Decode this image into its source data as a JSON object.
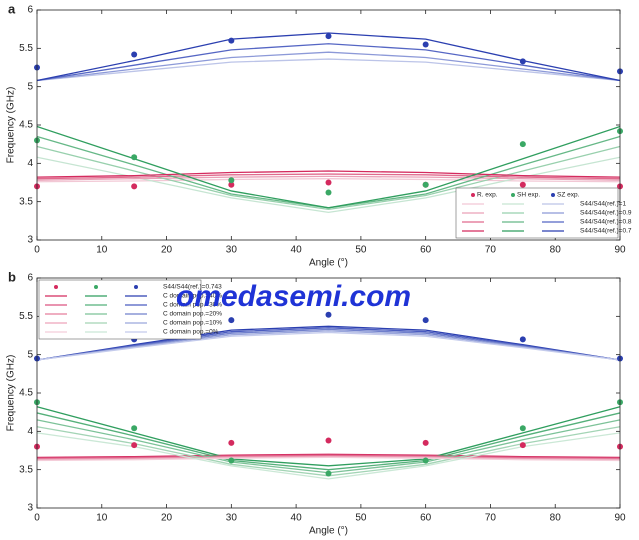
{
  "watermark": "omedasemi.com",
  "chart_data": [
    {
      "type": "line",
      "panel_label": "a",
      "xlabel": "Angle (°)",
      "ylabel": "Frequency (GHz)",
      "x": [
        0,
        15,
        30,
        45,
        60,
        75,
        90
      ],
      "xlim": [
        0,
        90
      ],
      "xticks": [
        0,
        10,
        20,
        30,
        40,
        50,
        60,
        70,
        80,
        90
      ],
      "ylim": [
        3,
        6
      ],
      "yticks": [
        3,
        3.5,
        4,
        4.5,
        5,
        5.5,
        6
      ],
      "legend": "lower right",
      "scatter": [
        {
          "name": "R. exp.",
          "color": "#d42a5e",
          "values": [
            3.7,
            3.7,
            3.72,
            3.75,
            3.72,
            3.72,
            3.7
          ]
        },
        {
          "name": "SH exp.",
          "color": "#3aa865",
          "values": [
            4.3,
            4.08,
            3.78,
            3.62,
            3.72,
            4.25,
            4.42
          ]
        },
        {
          "name": "SZ exp.",
          "color": "#2b3fb0",
          "values": [
            5.25,
            5.42,
            5.6,
            5.66,
            5.55,
            5.33,
            5.2
          ]
        }
      ],
      "lines": [
        {
          "name": "S44/S44(ref.)=1",
          "branches": [
            {
              "color": "#f2c8d5",
              "values": [
                3.76,
                3.77,
                3.79,
                3.8,
                3.79,
                3.77,
                3.76
              ]
            },
            {
              "color": "#c6e5d2",
              "values": [
                4.08,
                3.82,
                3.55,
                3.36,
                3.55,
                3.82,
                4.08
              ]
            },
            {
              "color": "#bcc4e8",
              "values": [
                5.08,
                5.2,
                5.32,
                5.36,
                5.32,
                5.2,
                5.08
              ]
            }
          ]
        },
        {
          "name": "S44/S44(ref.)=0.9",
          "branches": [
            {
              "color": "#eaa0b7",
              "values": [
                3.78,
                3.8,
                3.82,
                3.83,
                3.82,
                3.8,
                3.78
              ]
            },
            {
              "color": "#98d0ad",
              "values": [
                4.22,
                3.9,
                3.58,
                3.4,
                3.58,
                3.9,
                4.22
              ]
            },
            {
              "color": "#8c99d8",
              "values": [
                5.08,
                5.23,
                5.38,
                5.45,
                5.38,
                5.23,
                5.08
              ]
            }
          ]
        },
        {
          "name": "S44/S44(ref.)=0.8",
          "branches": [
            {
              "color": "#e06a8d",
              "values": [
                3.8,
                3.82,
                3.85,
                3.86,
                3.85,
                3.82,
                3.8
              ]
            },
            {
              "color": "#66b887",
              "values": [
                4.35,
                3.98,
                3.6,
                3.42,
                3.6,
                3.98,
                4.35
              ]
            },
            {
              "color": "#5566c4",
              "values": [
                5.08,
                5.28,
                5.48,
                5.56,
                5.48,
                5.28,
                5.08
              ]
            }
          ]
        },
        {
          "name": "S44/S44(ref.)=0.7",
          "branches": [
            {
              "color": "#d42a5e",
              "values": [
                3.82,
                3.84,
                3.88,
                3.9,
                3.88,
                3.84,
                3.82
              ]
            },
            {
              "color": "#2f9e5e",
              "values": [
                4.48,
                4.06,
                3.64,
                3.42,
                3.64,
                4.06,
                4.48
              ]
            },
            {
              "color": "#2b3fb0",
              "values": [
                5.08,
                5.34,
                5.62,
                5.7,
                5.62,
                5.34,
                5.08
              ]
            }
          ]
        }
      ]
    },
    {
      "type": "line",
      "panel_label": "b",
      "xlabel": "Angle (°)",
      "ylabel": "Frequency (GHz)",
      "x": [
        0,
        15,
        30,
        45,
        60,
        75,
        90
      ],
      "xlim": [
        0,
        90
      ],
      "xticks": [
        0,
        10,
        20,
        30,
        40,
        50,
        60,
        70,
        80,
        90
      ],
      "ylim": [
        3,
        6
      ],
      "yticks": [
        3,
        3.5,
        4,
        4.5,
        5,
        5.5,
        6
      ],
      "legend": "upper left",
      "scatter_label": "S44/S44(ref.)=0.743",
      "scatter": [
        {
          "color": "#d42a5e",
          "values": [
            3.8,
            3.82,
            3.85,
            3.88,
            3.85,
            3.82,
            3.8
          ]
        },
        {
          "color": "#3aa865",
          "values": [
            4.38,
            4.04,
            3.62,
            3.45,
            3.62,
            4.04,
            4.38
          ]
        },
        {
          "color": "#2b3fb0",
          "values": [
            4.95,
            5.2,
            5.45,
            5.52,
            5.45,
            5.2,
            4.95
          ]
        }
      ],
      "lines": [
        {
          "name": "C domain pop.=40%",
          "branches": [
            {
              "color": "#d42a5e",
              "values": [
                3.66,
                3.67,
                3.69,
                3.7,
                3.69,
                3.67,
                3.66
              ]
            },
            {
              "color": "#2f9e5e",
              "values": [
                4.32,
                3.98,
                3.64,
                3.55,
                3.64,
                3.98,
                4.32
              ]
            },
            {
              "color": "#2b3fb0",
              "values": [
                4.93,
                5.13,
                5.32,
                5.37,
                5.32,
                5.13,
                4.93
              ]
            }
          ]
        },
        {
          "name": "C domain pop.=30%",
          "branches": [
            {
              "color": "#dc5580",
              "values": [
                3.65,
                3.66,
                3.68,
                3.69,
                3.68,
                3.66,
                3.65
              ]
            },
            {
              "color": "#55b07a",
              "values": [
                4.24,
                3.94,
                3.62,
                3.5,
                3.62,
                3.94,
                4.24
              ]
            },
            {
              "color": "#4a5cc0",
              "values": [
                4.93,
                5.12,
                5.3,
                5.35,
                5.3,
                5.12,
                4.93
              ]
            }
          ]
        },
        {
          "name": "C domain pop.=20%",
          "branches": [
            {
              "color": "#e57d9c",
              "values": [
                3.64,
                3.65,
                3.67,
                3.68,
                3.67,
                3.65,
                3.64
              ]
            },
            {
              "color": "#7cc298",
              "values": [
                4.15,
                3.89,
                3.6,
                3.46,
                3.6,
                3.89,
                4.15
              ]
            },
            {
              "color": "#7080cc",
              "values": [
                4.93,
                5.11,
                5.28,
                5.33,
                5.28,
                5.11,
                4.93
              ]
            }
          ]
        },
        {
          "name": "C domain pop.=10%",
          "branches": [
            {
              "color": "#eda5bb",
              "values": [
                3.63,
                3.64,
                3.66,
                3.67,
                3.66,
                3.64,
                3.63
              ]
            },
            {
              "color": "#a3d4b5",
              "values": [
                4.06,
                3.84,
                3.57,
                3.42,
                3.57,
                3.84,
                4.06
              ]
            },
            {
              "color": "#9aa6dc",
              "values": [
                4.93,
                5.1,
                5.26,
                5.31,
                5.26,
                5.1,
                4.93
              ]
            }
          ]
        },
        {
          "name": "C domain pop.=0%",
          "branches": [
            {
              "color": "#f4cdd9",
              "values": [
                3.62,
                3.63,
                3.65,
                3.66,
                3.65,
                3.63,
                3.62
              ]
            },
            {
              "color": "#cbe8d6",
              "values": [
                3.98,
                3.8,
                3.55,
                3.38,
                3.55,
                3.8,
                3.98
              ]
            },
            {
              "color": "#c4cbec",
              "values": [
                4.93,
                5.09,
                5.24,
                5.29,
                5.24,
                5.09,
                4.93
              ]
            }
          ]
        }
      ]
    }
  ]
}
